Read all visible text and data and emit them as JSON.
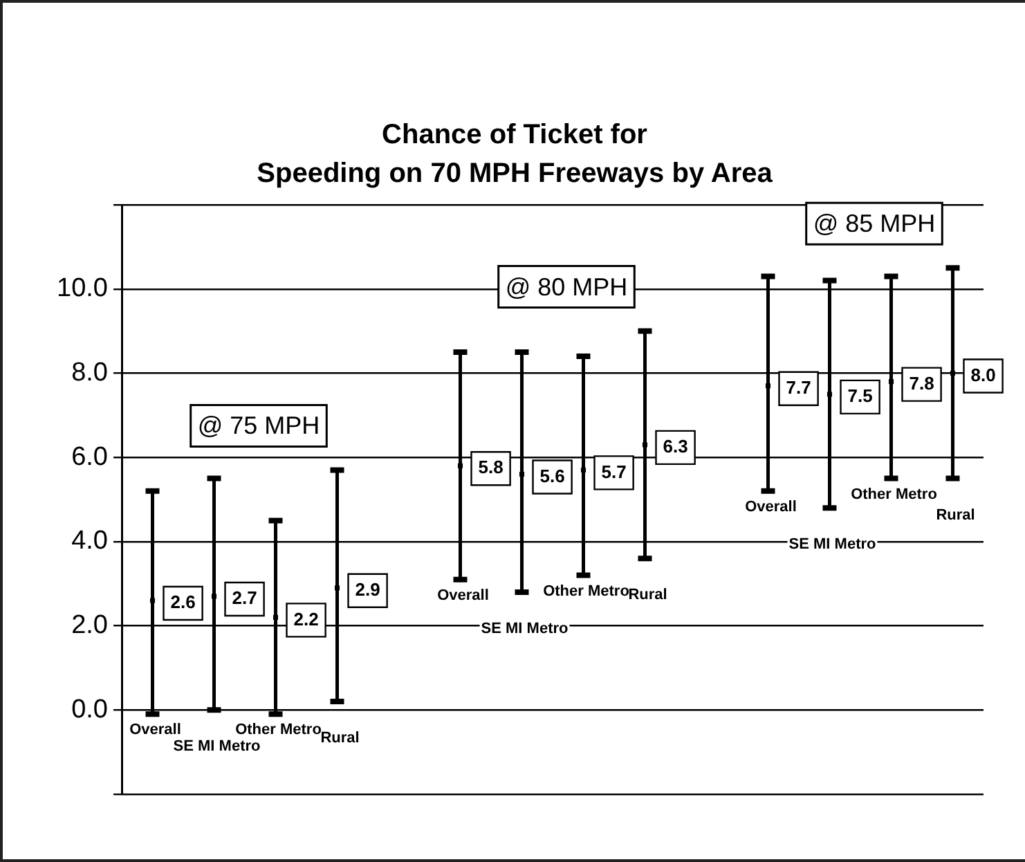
{
  "chart_data": {
    "type": "scatter",
    "title": "Chance of Ticket for\nSpeeding on 70 MPH Freeways by Area",
    "categories": [
      "Overall",
      "SE MI Metro",
      "Other Metro",
      "Rural",
      null,
      "Overall",
      "SE MI Metro",
      "Other Metro",
      "Rural",
      null,
      "Overall",
      "SE MI Metro",
      "Other Metro",
      "Rural"
    ],
    "values": [
      2.6,
      2.7,
      2.2,
      2.9,
      null,
      5.8,
      5.6,
      5.7,
      6.3,
      null,
      7.7,
      7.5,
      7.8,
      8.0
    ],
    "errors": [
      [
        -0.1,
        5.2
      ],
      [
        0.0,
        5.5
      ],
      [
        -0.1,
        4.5
      ],
      [
        0.2,
        5.7
      ],
      null,
      [
        3.1,
        8.5
      ],
      [
        2.8,
        8.5
      ],
      [
        3.2,
        8.4
      ],
      [
        3.6,
        9.0
      ],
      null,
      [
        5.2,
        10.3
      ],
      [
        4.8,
        10.2
      ],
      [
        5.5,
        10.3
      ],
      [
        5.5,
        10.5
      ]
    ],
    "value_labels": [
      "2.6",
      "2.7",
      "2.2",
      "2.9",
      null,
      "5.8",
      "5.6",
      "5.7",
      "6.3",
      null,
      "7.7",
      "7.5",
      "7.8",
      "8.0"
    ],
    "color": "#000000",
    "marker": "square",
    "grid": "y",
    "legend": false,
    "ylim": [
      -2,
      12
    ],
    "yticks": [
      {
        "value": -2,
        "label": null
      },
      {
        "value": 0,
        "label": "0.0"
      },
      {
        "value": 2,
        "label": "2.0"
      },
      {
        "value": 4,
        "label": "4.0"
      },
      {
        "value": 6,
        "label": "6.0"
      },
      {
        "value": 8,
        "label": "8.0"
      },
      {
        "value": 10,
        "label": "10.0"
      },
      {
        "value": 12,
        "label": null
      }
    ],
    "annotations": [
      "@ 75 MPH",
      "@ 80 MPH",
      "@ 85 MPH"
    ]
  }
}
